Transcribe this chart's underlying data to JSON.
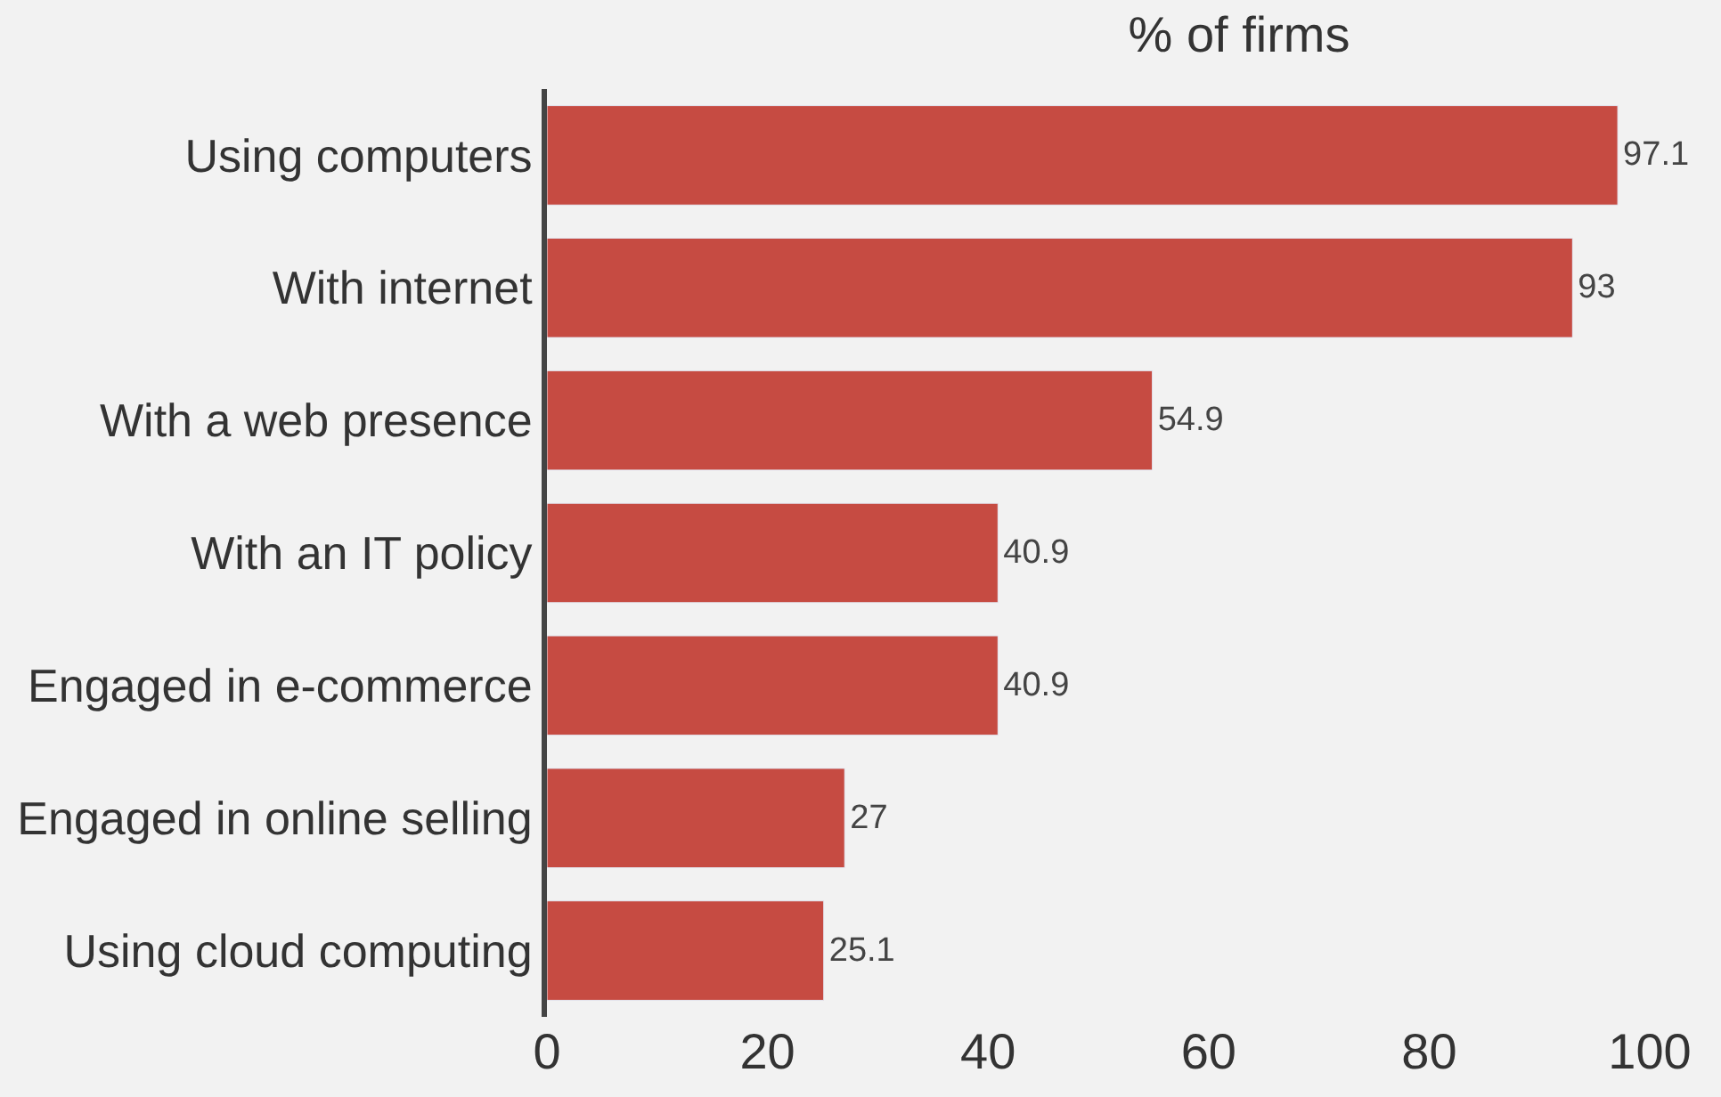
{
  "chart_data": {
    "type": "bar",
    "orientation": "horizontal",
    "title": "% of firms",
    "categories": [
      "Using computers",
      "With internet",
      "With a web presence",
      "With an IT policy",
      "Engaged in e-commerce",
      "Engaged in online selling",
      "Using cloud computing"
    ],
    "values": [
      97.1,
      93,
      54.9,
      40.9,
      40.9,
      27,
      25.1
    ],
    "color": "#c64b42",
    "xlim": [
      0,
      100
    ],
    "xticks": [
      0,
      20,
      40,
      60,
      80,
      100
    ],
    "data_labels": true,
    "grid": false,
    "legend": false
  }
}
